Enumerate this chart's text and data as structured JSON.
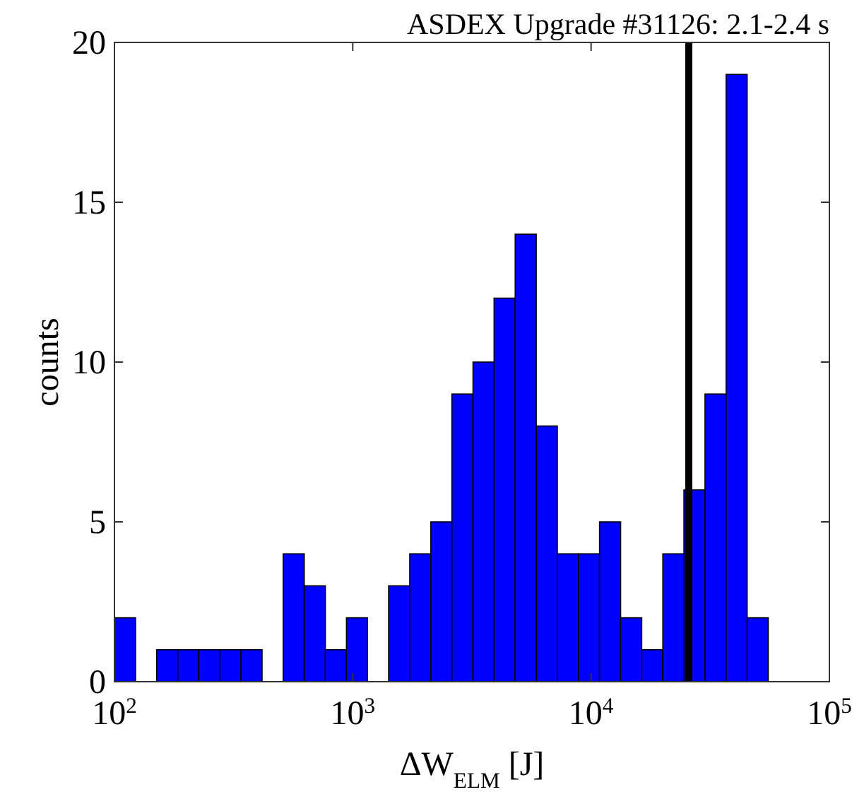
{
  "chart_data": {
    "type": "histogram",
    "title": "ASDEX Upgrade #31126: 2.1-2.4 s",
    "xlabel": "ΔW$_{ELM}$ [J]",
    "ylabel": "counts",
    "log": "x",
    "color": "#0000ff",
    "bins": [
      100,
      122.6,
      150.3,
      184.3,
      225.9,
      277,
      339.6,
      416.4,
      510.5,
      625.9,
      767.4,
      940.8,
      1153,
      1414,
      1734,
      2126,
      2606,
      3195,
      3917,
      4803,
      5888,
      7219,
      8851,
      10851,
      13305,
      16313,
      20000,
      24521,
      30061,
      36859,
      45186,
      55400
    ],
    "values": [
      2,
      0,
      1,
      1,
      1,
      1,
      1,
      0,
      4,
      3,
      1,
      2,
      0,
      3,
      4,
      5,
      9,
      10,
      12,
      14,
      8,
      4,
      4,
      5,
      2,
      1,
      4,
      6,
      9,
      19,
      2
    ],
    "xlim": [
      100,
      100000
    ],
    "xticks": [
      {
        "value": 100,
        "label": "10$^{2}$"
      },
      {
        "value": 1000,
        "label": "10$^{3}$"
      },
      {
        "value": 10000,
        "label": "10$^{4}$"
      },
      {
        "value": 100000,
        "label": "10$^{5}$"
      }
    ],
    "ylim": [
      0,
      20
    ],
    "yticks": [
      0,
      5,
      10,
      15,
      20
    ],
    "grid": false,
    "ref_lines": [
      {
        "axis": "x",
        "value": 25700,
        "color": "#000000"
      }
    ]
  }
}
